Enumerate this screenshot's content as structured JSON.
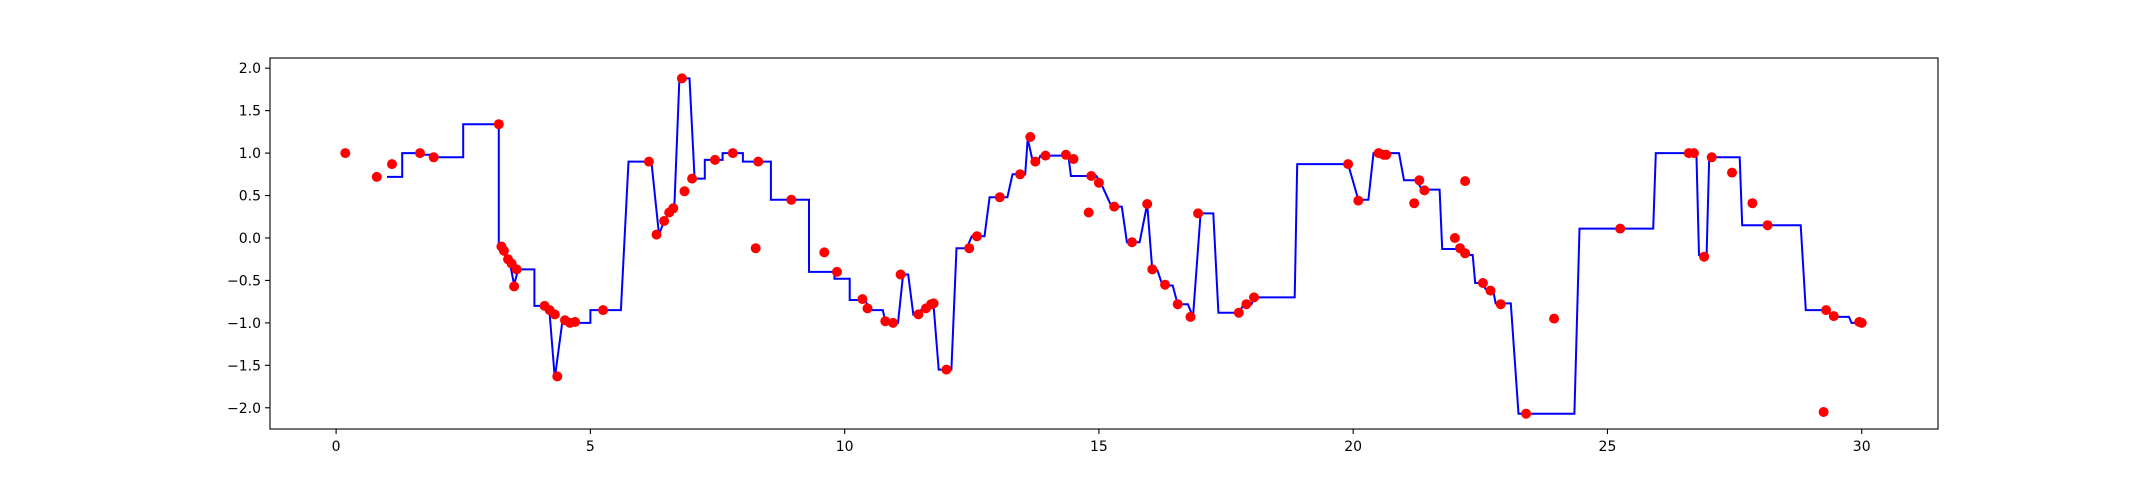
{
  "chart_data": {
    "type": "scatter",
    "title": "",
    "xlabel": "",
    "ylabel": "",
    "xlim": [
      -1.3,
      31.5
    ],
    "ylim": [
      -2.25,
      2.12
    ],
    "xticks": [
      0,
      5,
      10,
      15,
      20,
      25,
      30
    ],
    "yticks": [
      -2.0,
      -1.5,
      -1.0,
      -0.5,
      0.0,
      0.5,
      1.0,
      1.5,
      2.0
    ],
    "xtick_labels": [
      "0",
      "5",
      "10",
      "15",
      "20",
      "25",
      "30"
    ],
    "ytick_labels": [
      "−2.0",
      "−1.5",
      "−1.0",
      "−0.5",
      "0.0",
      "0.5",
      "1.0",
      "1.5",
      "2.0"
    ],
    "grid": false,
    "legend": "none",
    "series": [
      {
        "kind": "step",
        "color": "#0000ff",
        "points": [
          [
            1.0,
            0.72
          ],
          [
            1.3,
            0.72
          ],
          [
            1.3,
            1.0
          ],
          [
            1.65,
            1.0
          ],
          [
            1.65,
            0.98
          ],
          [
            1.95,
            0.98
          ],
          [
            1.95,
            0.95
          ],
          [
            2.5,
            0.95
          ],
          [
            2.5,
            1.34
          ],
          [
            3.2,
            1.34
          ],
          [
            3.2,
            -0.1
          ],
          [
            3.28,
            -0.15
          ],
          [
            3.35,
            -0.25
          ],
          [
            3.42,
            -0.3
          ],
          [
            3.5,
            -0.55
          ],
          [
            3.58,
            -0.37
          ],
          [
            3.9,
            -0.37
          ],
          [
            3.9,
            -0.8
          ],
          [
            4.1,
            -0.8
          ],
          [
            4.2,
            -0.9
          ],
          [
            4.3,
            -1.65
          ],
          [
            4.45,
            -0.98
          ],
          [
            4.55,
            -0.98
          ],
          [
            4.6,
            -1.0
          ],
          [
            5.0,
            -1.0
          ],
          [
            5.0,
            -0.85
          ],
          [
            5.6,
            -0.85
          ],
          [
            5.6,
            -0.85
          ],
          [
            5.75,
            0.9
          ],
          [
            6.2,
            0.9
          ],
          [
            6.35,
            0.04
          ],
          [
            6.45,
            0.2
          ],
          [
            6.55,
            0.3
          ],
          [
            6.65,
            0.35
          ],
          [
            6.75,
            1.88
          ],
          [
            6.95,
            1.88
          ],
          [
            7.05,
            0.7
          ],
          [
            7.25,
            0.7
          ],
          [
            7.25,
            0.92
          ],
          [
            7.6,
            0.92
          ],
          [
            7.6,
            1.0
          ],
          [
            8.0,
            1.0
          ],
          [
            8.0,
            0.9
          ],
          [
            8.55,
            0.9
          ],
          [
            8.55,
            0.45
          ],
          [
            9.3,
            0.45
          ],
          [
            9.3,
            -0.4
          ],
          [
            9.8,
            -0.4
          ],
          [
            9.8,
            -0.48
          ],
          [
            10.1,
            -0.48
          ],
          [
            10.1,
            -0.73
          ],
          [
            10.4,
            -0.73
          ],
          [
            10.5,
            -0.85
          ],
          [
            10.75,
            -0.85
          ],
          [
            10.8,
            -0.98
          ],
          [
            11.05,
            -1.0
          ],
          [
            11.15,
            -0.43
          ],
          [
            11.25,
            -0.43
          ],
          [
            11.35,
            -0.9
          ],
          [
            11.5,
            -0.85
          ],
          [
            11.6,
            -0.8
          ],
          [
            11.75,
            -0.8
          ],
          [
            11.85,
            -1.55
          ],
          [
            12.1,
            -1.55
          ],
          [
            12.2,
            -0.12
          ],
          [
            12.4,
            -0.12
          ],
          [
            12.5,
            0.02
          ],
          [
            12.75,
            0.02
          ],
          [
            12.85,
            0.48
          ],
          [
            13.2,
            0.48
          ],
          [
            13.3,
            0.75
          ],
          [
            13.55,
            0.75
          ],
          [
            13.6,
            1.17
          ],
          [
            13.7,
            0.9
          ],
          [
            13.8,
            0.9
          ],
          [
            13.85,
            0.97
          ],
          [
            14.4,
            0.97
          ],
          [
            14.45,
            0.73
          ],
          [
            14.95,
            0.73
          ],
          [
            15.05,
            0.63
          ],
          [
            15.25,
            0.37
          ],
          [
            15.45,
            0.37
          ],
          [
            15.55,
            -0.05
          ],
          [
            15.8,
            -0.05
          ],
          [
            15.95,
            0.4
          ],
          [
            16.05,
            -0.38
          ],
          [
            16.15,
            -0.38
          ],
          [
            16.25,
            -0.56
          ],
          [
            16.45,
            -0.56
          ],
          [
            16.55,
            -0.78
          ],
          [
            16.75,
            -0.78
          ],
          [
            16.85,
            -0.93
          ],
          [
            17.0,
            0.29
          ],
          [
            17.25,
            0.29
          ],
          [
            17.35,
            -0.88
          ],
          [
            17.75,
            -0.88
          ],
          [
            17.85,
            -0.78
          ],
          [
            18.0,
            -0.78
          ],
          [
            18.05,
            -0.7
          ],
          [
            18.85,
            -0.7
          ],
          [
            18.9,
            0.87
          ],
          [
            19.9,
            0.87
          ],
          [
            20.1,
            0.45
          ],
          [
            20.3,
            0.45
          ],
          [
            20.4,
            1.0
          ],
          [
            20.9,
            1.0
          ],
          [
            21.0,
            0.68
          ],
          [
            21.25,
            0.68
          ],
          [
            21.35,
            0.57
          ],
          [
            21.7,
            0.57
          ],
          [
            21.75,
            -0.13
          ],
          [
            22.1,
            -0.13
          ],
          [
            22.2,
            -0.2
          ],
          [
            22.35,
            -0.2
          ],
          [
            22.4,
            -0.53
          ],
          [
            22.55,
            -0.53
          ],
          [
            22.6,
            -0.6
          ],
          [
            22.75,
            -0.6
          ],
          [
            22.8,
            -0.77
          ],
          [
            23.1,
            -0.77
          ],
          [
            23.25,
            -2.07
          ],
          [
            24.35,
            -2.07
          ],
          [
            24.45,
            0.11
          ],
          [
            25.9,
            0.11
          ],
          [
            25.95,
            1.0
          ],
          [
            26.75,
            1.0
          ],
          [
            26.8,
            -0.2
          ],
          [
            26.95,
            -0.2
          ],
          [
            27.0,
            0.95
          ],
          [
            27.6,
            0.95
          ],
          [
            27.65,
            0.15
          ],
          [
            28.8,
            0.15
          ],
          [
            28.9,
            -0.85
          ],
          [
            29.35,
            -0.85
          ],
          [
            29.4,
            -0.93
          ],
          [
            29.75,
            -0.93
          ],
          [
            29.8,
            -1.0
          ],
          [
            30.0,
            -1.0
          ]
        ]
      },
      {
        "kind": "scatter",
        "color": "#ff0000",
        "points": [
          [
            0.18,
            1.0
          ],
          [
            0.8,
            0.72
          ],
          [
            1.1,
            0.87
          ],
          [
            1.65,
            1.0
          ],
          [
            1.92,
            0.95
          ],
          [
            3.2,
            1.34
          ],
          [
            3.25,
            -0.1
          ],
          [
            3.3,
            -0.15
          ],
          [
            3.38,
            -0.25
          ],
          [
            3.45,
            -0.3
          ],
          [
            3.5,
            -0.57
          ],
          [
            3.55,
            -0.37
          ],
          [
            4.1,
            -0.8
          ],
          [
            4.2,
            -0.85
          ],
          [
            4.3,
            -0.9
          ],
          [
            4.35,
            -1.63
          ],
          [
            4.5,
            -0.97
          ],
          [
            4.6,
            -1.0
          ],
          [
            4.7,
            -0.99
          ],
          [
            5.25,
            -0.85
          ],
          [
            6.15,
            0.9
          ],
          [
            6.3,
            0.04
          ],
          [
            6.45,
            0.2
          ],
          [
            6.55,
            0.3
          ],
          [
            6.63,
            0.35
          ],
          [
            6.8,
            1.88
          ],
          [
            6.85,
            0.55
          ],
          [
            7.0,
            0.7
          ],
          [
            7.45,
            0.92
          ],
          [
            7.8,
            1.0
          ],
          [
            8.25,
            -0.12
          ],
          [
            8.3,
            0.9
          ],
          [
            8.95,
            0.45
          ],
          [
            9.6,
            -0.17
          ],
          [
            9.85,
            -0.4
          ],
          [
            10.35,
            -0.72
          ],
          [
            10.45,
            -0.83
          ],
          [
            10.8,
            -0.98
          ],
          [
            10.95,
            -1.0
          ],
          [
            11.1,
            -0.43
          ],
          [
            11.45,
            -0.9
          ],
          [
            11.6,
            -0.83
          ],
          [
            11.7,
            -0.78
          ],
          [
            11.75,
            -0.77
          ],
          [
            12.0,
            -1.55
          ],
          [
            12.45,
            -0.12
          ],
          [
            12.6,
            0.02
          ],
          [
            13.05,
            0.48
          ],
          [
            13.45,
            0.75
          ],
          [
            13.65,
            1.19
          ],
          [
            13.75,
            0.9
          ],
          [
            13.95,
            0.97
          ],
          [
            14.35,
            0.98
          ],
          [
            14.5,
            0.93
          ],
          [
            14.8,
            0.3
          ],
          [
            14.85,
            0.73
          ],
          [
            15.0,
            0.65
          ],
          [
            15.3,
            0.37
          ],
          [
            15.65,
            -0.05
          ],
          [
            15.95,
            0.4
          ],
          [
            16.05,
            -0.37
          ],
          [
            16.3,
            -0.55
          ],
          [
            16.55,
            -0.78
          ],
          [
            16.8,
            -0.93
          ],
          [
            16.95,
            0.29
          ],
          [
            17.75,
            -0.88
          ],
          [
            17.9,
            -0.78
          ],
          [
            18.05,
            -0.7
          ],
          [
            19.9,
            0.87
          ],
          [
            20.1,
            0.44
          ],
          [
            20.5,
            1.0
          ],
          [
            20.6,
            0.98
          ],
          [
            20.65,
            0.98
          ],
          [
            21.2,
            0.41
          ],
          [
            21.3,
            0.68
          ],
          [
            21.4,
            0.56
          ],
          [
            22.0,
            0.0
          ],
          [
            22.1,
            -0.12
          ],
          [
            22.2,
            -0.18
          ],
          [
            22.2,
            0.67
          ],
          [
            22.55,
            -0.53
          ],
          [
            22.7,
            -0.62
          ],
          [
            22.9,
            -0.78
          ],
          [
            23.4,
            -2.07
          ],
          [
            23.95,
            -0.95
          ],
          [
            25.25,
            0.11
          ],
          [
            26.6,
            1.0
          ],
          [
            26.7,
            1.0
          ],
          [
            26.9,
            -0.22
          ],
          [
            27.05,
            0.95
          ],
          [
            27.45,
            0.77
          ],
          [
            27.85,
            0.41
          ],
          [
            28.15,
            0.15
          ],
          [
            29.25,
            -2.05
          ],
          [
            29.3,
            -0.85
          ],
          [
            29.45,
            -0.92
          ],
          [
            29.95,
            -0.99
          ],
          [
            30.0,
            -1.0
          ]
        ]
      }
    ]
  }
}
